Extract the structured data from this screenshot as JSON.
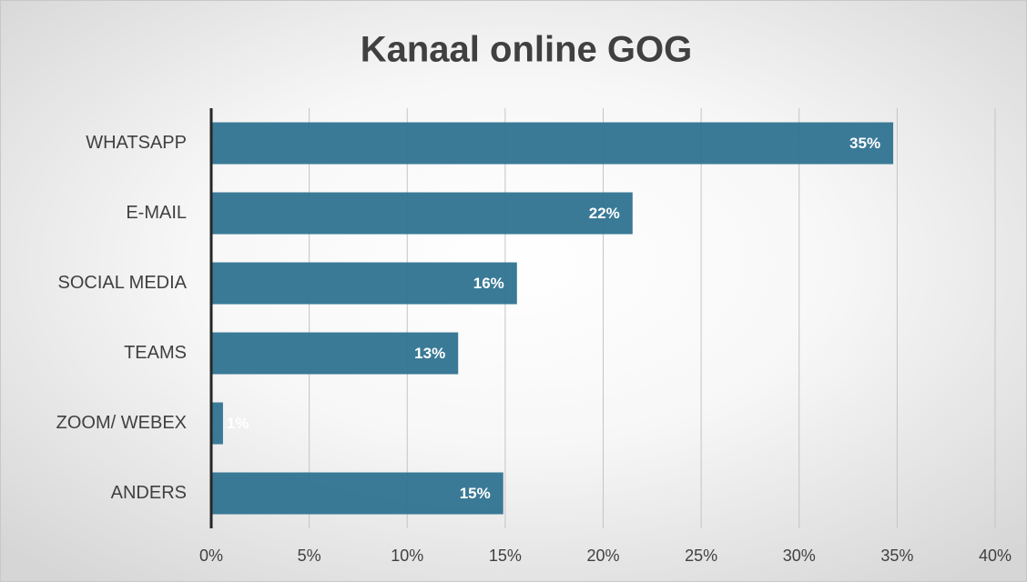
{
  "chart_data": {
    "type": "bar",
    "orientation": "horizontal",
    "title": "Kanaal online GOG",
    "categories": [
      "WHATSAPP",
      "E-MAIL",
      "SOCIAL MEDIA",
      "TEAMS",
      "ZOOM/ WEBEX",
      "ANDERS"
    ],
    "values": [
      34.8,
      21.5,
      15.6,
      12.6,
      0.6,
      14.9
    ],
    "value_labels": [
      "35%",
      "22%",
      "16%",
      "13%",
      "1%",
      "15%"
    ],
    "color": "#2f7391",
    "xlim": [
      0,
      40
    ],
    "xticks": [
      {
        "value": 0,
        "label": "0%"
      },
      {
        "value": 5,
        "label": "5%"
      },
      {
        "value": 10,
        "label": "10%"
      },
      {
        "value": 15,
        "label": "15%"
      },
      {
        "value": 20,
        "label": "20%"
      },
      {
        "value": 25,
        "label": "25%"
      },
      {
        "value": 30,
        "label": "30%"
      },
      {
        "value": 35,
        "label": "35%"
      },
      {
        "value": 40,
        "label": "40%"
      }
    ],
    "grid": true
  }
}
